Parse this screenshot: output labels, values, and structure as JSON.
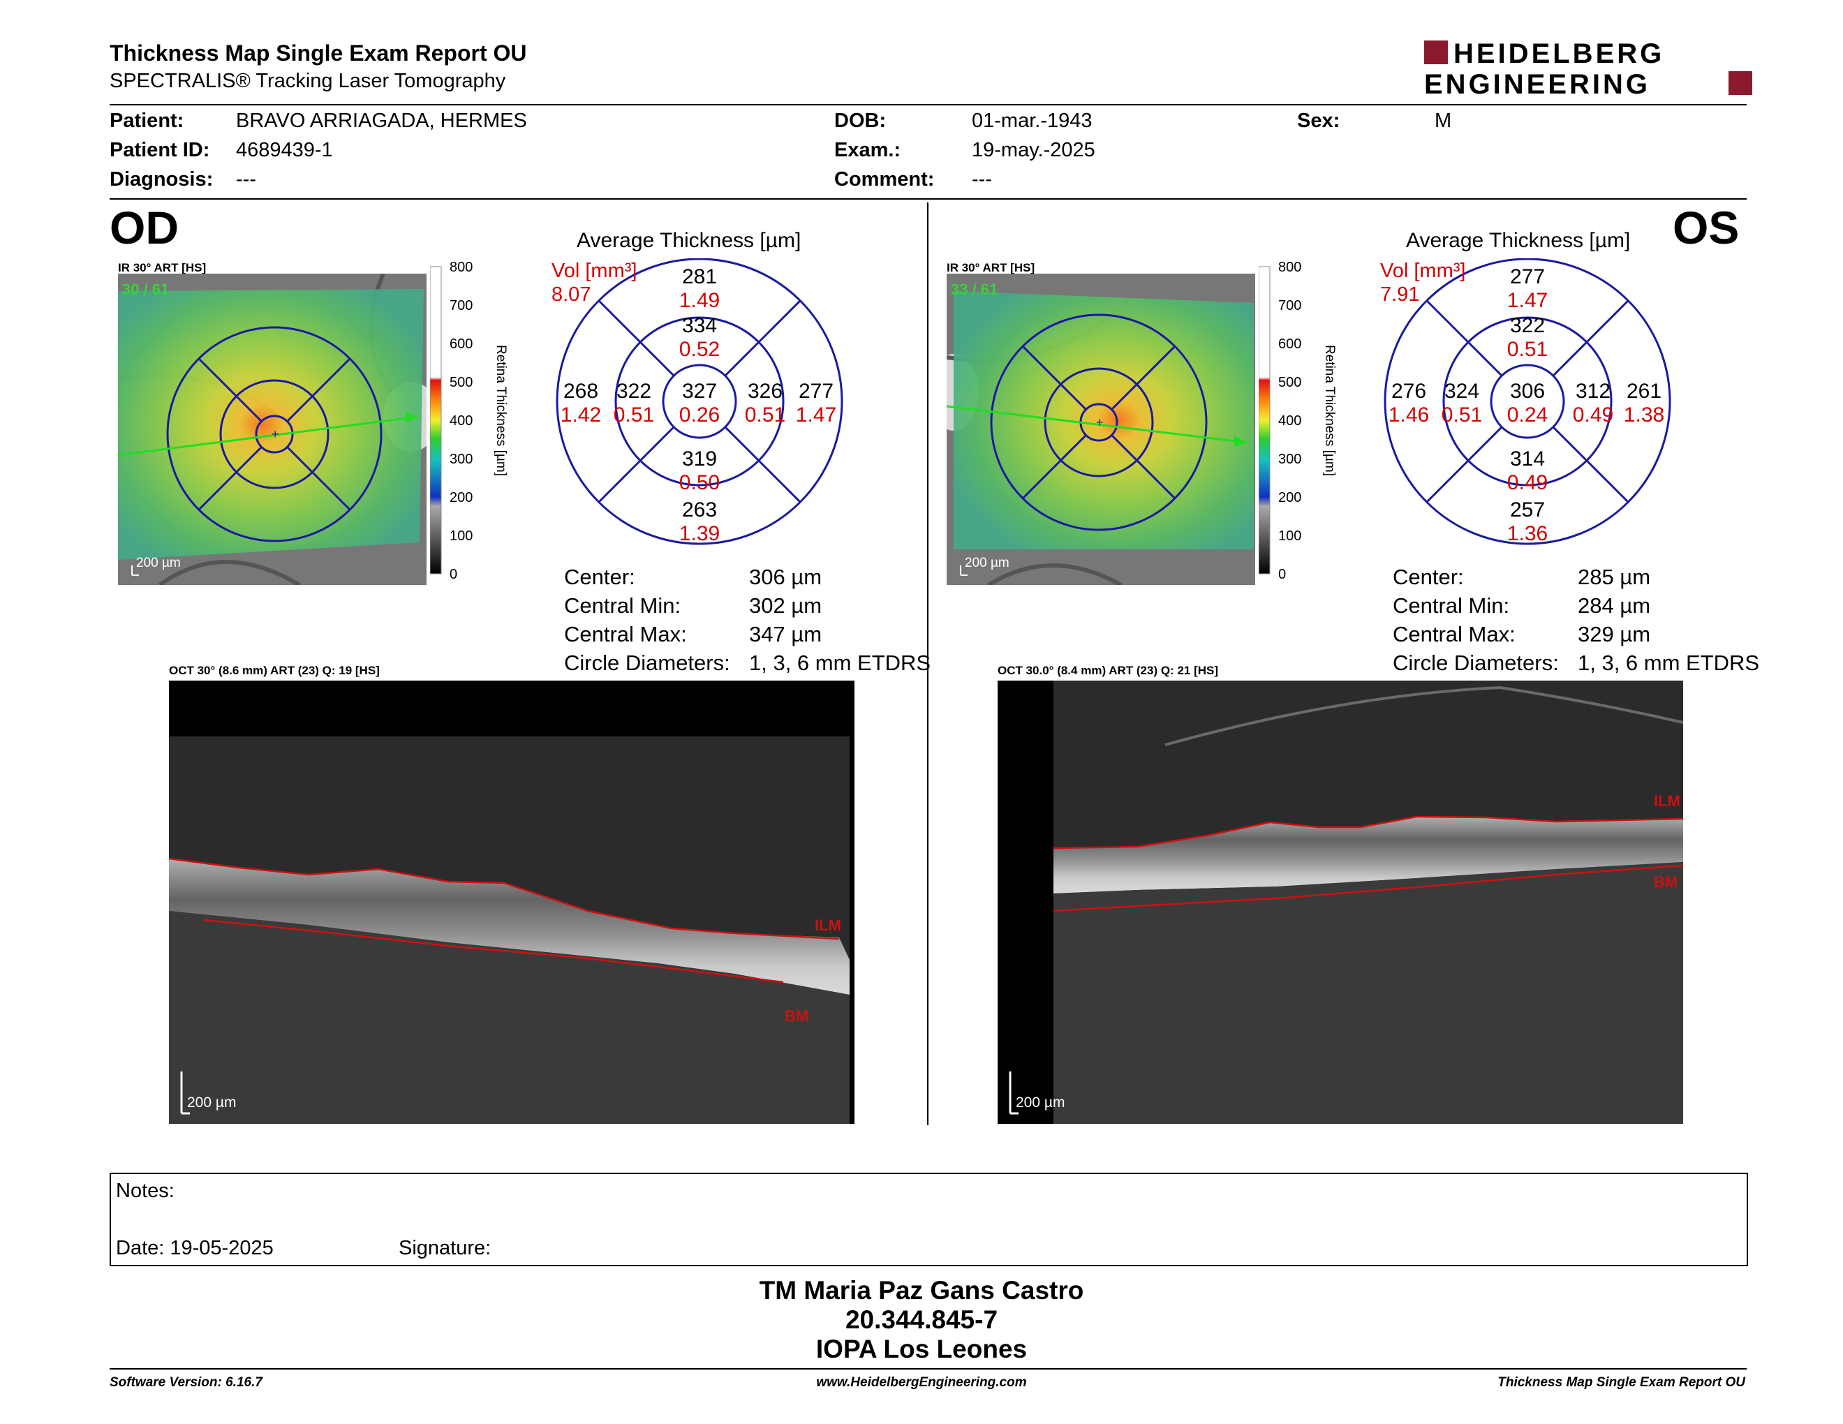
{
  "header": {
    "title": "Thickness Map Single Exam Report OU",
    "subtitle": "SPECTRALIS® Tracking Laser Tomography",
    "logo_line1": "HEIDELBERG",
    "logo_line2": "ENGINEERING"
  },
  "patient": {
    "patient_label": "Patient:",
    "patient_value": "BRAVO ARRIAGADA, HERMES",
    "id_label": "Patient ID:",
    "id_value": "4689439-1",
    "diagnosis_label": "Diagnosis:",
    "diagnosis_value": "---",
    "dob_label": "DOB:",
    "dob_value": "01-mar.-1943",
    "exam_label": "Exam.:",
    "exam_value": "19-may.-2025",
    "comment_label": "Comment:",
    "comment_value": "---",
    "sex_label": "Sex:",
    "sex_value": "M"
  },
  "od": {
    "eye": "OD",
    "ir_label": "IR 30° ART [HS]",
    "ir_count": "30 / 61",
    "scale": "200 µm",
    "avg_title": "Average Thickness [µm]",
    "vol_label": "Vol [mm³]",
    "vol_value": "8.07",
    "sectors": {
      "center_t": "327",
      "center_v": "0.26",
      "inner_sup_t": "334",
      "inner_sup_v": "0.52",
      "inner_inf_t": "319",
      "inner_inf_v": "0.50",
      "inner_left_t": "322",
      "inner_left_v": "0.51",
      "inner_right_t": "326",
      "inner_right_v": "0.51",
      "outer_sup_t": "281",
      "outer_sup_v": "1.49",
      "outer_inf_t": "263",
      "outer_inf_v": "1.39",
      "outer_left_t": "268",
      "outer_left_v": "1.42",
      "outer_right_t": "277",
      "outer_right_v": "1.47"
    },
    "stats": {
      "center_label": "Center:",
      "center_value": "306 µm",
      "min_label": "Central Min:",
      "min_value": "302 µm",
      "max_label": "Central Max:",
      "max_value": "347 µm",
      "diam_label": "Circle Diameters:",
      "diam_value": "1, 3, 6 mm ETDRS"
    },
    "oct_label": "OCT 30° (8.6 mm) ART (23) Q: 19 [HS]",
    "ilm": "ILM",
    "bm": "BM",
    "oct_scale": "200 µm"
  },
  "os": {
    "eye": "OS",
    "ir_label": "IR 30° ART [HS]",
    "ir_count": "33 / 61",
    "scale": "200 µm",
    "avg_title": "Average Thickness [µm]",
    "vol_label": "Vol [mm³]",
    "vol_value": "7.91",
    "sectors": {
      "center_t": "306",
      "center_v": "0.24",
      "inner_sup_t": "322",
      "inner_sup_v": "0.51",
      "inner_inf_t": "314",
      "inner_inf_v": "0.49",
      "inner_left_t": "324",
      "inner_left_v": "0.51",
      "inner_right_t": "312",
      "inner_right_v": "0.49",
      "outer_sup_t": "277",
      "outer_sup_v": "1.47",
      "outer_inf_t": "257",
      "outer_inf_v": "1.36",
      "outer_left_t": "276",
      "outer_left_v": "1.46",
      "outer_right_t": "261",
      "outer_right_v": "1.38"
    },
    "stats": {
      "center_label": "Center:",
      "center_value": "285 µm",
      "min_label": "Central Min:",
      "min_value": "284 µm",
      "max_label": "Central Max:",
      "max_value": "329 µm",
      "diam_label": "Circle Diameters:",
      "diam_value": "1, 3, 6 mm ETDRS"
    },
    "oct_label": "OCT 30.0° (8.4 mm) ART (23) Q: 21 [HS]",
    "ilm": "ILM",
    "bm": "BM",
    "oct_scale": "200 µm"
  },
  "colorbar": {
    "ticks": [
      "800",
      "700",
      "600",
      "500",
      "400",
      "300",
      "200",
      "100",
      "0"
    ],
    "title": "Retina Thickness [µm]"
  },
  "notes": {
    "notes_label": "Notes:",
    "date_label": "Date: 19-05-2025",
    "signature_label": "Signature:"
  },
  "footer": {
    "name": "TM Maria Paz Gans Castro",
    "id": "20.344.845-7",
    "org": "IOPA Los Leones",
    "software": "Software Version: 6.16.7",
    "website": "www.HeidelbergEngineering.com",
    "report": "Thickness Map Single Exam Report OU"
  },
  "colors": {
    "accent_red": "#d40000",
    "logo_red": "#8b1a2e",
    "grid_blue": "#1a1aa0",
    "ilm_red": "#cc1111"
  }
}
